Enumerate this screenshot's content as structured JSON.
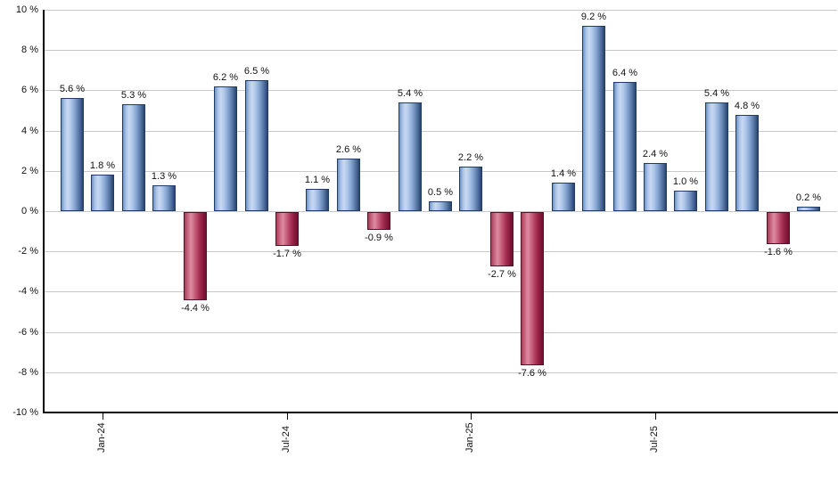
{
  "chart_data": {
    "type": "bar",
    "values": [
      5.6,
      1.8,
      5.3,
      1.3,
      -4.4,
      6.2,
      6.5,
      -1.7,
      1.1,
      2.6,
      -0.9,
      5.4,
      0.5,
      2.2,
      -2.7,
      -7.6,
      1.4,
      9.2,
      6.4,
      2.4,
      1.0,
      5.4,
      4.8,
      -1.6,
      0.2
    ],
    "bar_labels": [
      "5.6 %",
      "1.8 %",
      "5.3 %",
      "1.3 %",
      "-4.4 %",
      "6.2 %",
      "6.5 %",
      "-1.7 %",
      "1.1 %",
      "2.6 %",
      "-0.9 %",
      "5.4 %",
      "0.5 %",
      "2.2 %",
      "-2.7 %",
      "-7.6 %",
      "1.4 %",
      "9.2 %",
      "6.4 %",
      "2.4 %",
      "1.0 %",
      "5.4 %",
      "4.8 %",
      "-1.6 %",
      "0.2 %"
    ],
    "ylim": [
      -10,
      10
    ],
    "yticks": [
      {
        "value": 10,
        "label": "10 %"
      },
      {
        "value": 8,
        "label": "8 %"
      },
      {
        "value": 6,
        "label": "6 %"
      },
      {
        "value": 4,
        "label": "4 %"
      },
      {
        "value": 2,
        "label": "2 %"
      },
      {
        "value": 0,
        "label": "0 %"
      },
      {
        "value": -2,
        "label": "-2 %"
      },
      {
        "value": -4,
        "label": "-4 %"
      },
      {
        "value": -6,
        "label": "-6 %"
      },
      {
        "value": -8,
        "label": "-8 %"
      },
      {
        "value": -10,
        "label": "-10 %"
      }
    ],
    "xticks": [
      {
        "bar_index": 1,
        "label": "Jan-24"
      },
      {
        "bar_index": 7,
        "label": "Jul-24"
      },
      {
        "bar_index": 13,
        "label": "Jan-25"
      },
      {
        "bar_index": 19,
        "label": "Jul-25"
      }
    ],
    "grid": true,
    "legend": "none",
    "colors": {
      "positive_bar_gradient": [
        "#6e93c4 0%",
        "#a9c2e6 14%",
        "#c8d9f2 28%",
        "#b2c9ea 42%",
        "#8fadd8 58%",
        "#6584b2 76%",
        "#41608e 90%",
        "#2b4368 100%"
      ],
      "positive_bar_border": "#1e3c66",
      "negative_bar_gradient": [
        "#a83a58 0%",
        "#c96882 16%",
        "#dd8ba0 30%",
        "#c75f7c 48%",
        "#aa3458 66%",
        "#8c1a3e 84%",
        "#6e1030 100%"
      ],
      "negative_bar_border": "#521226",
      "gridline": "#c9c9c9",
      "axis": "#000000",
      "text": "#111111",
      "background": "#ffffff"
    }
  }
}
